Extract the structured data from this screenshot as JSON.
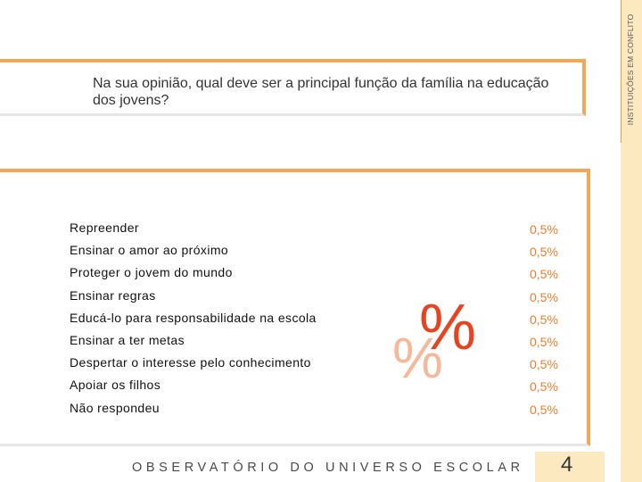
{
  "sidebar": {
    "label": "INSTITUIÇÕES EM CONFLITO"
  },
  "question": {
    "text": "Na sua opinião, qual deve ser a principal função da família na educação dos jovens?"
  },
  "answers": [
    {
      "label": "Repreender",
      "value": "0,5%"
    },
    {
      "label": "Ensinar o amor ao próximo",
      "value": "0,5%"
    },
    {
      "label": "Proteger o jovem do mundo",
      "value": "0,5%"
    },
    {
      "label": "Ensinar regras",
      "value": "0,5%"
    },
    {
      "label": "Educá-lo para responsabilidade na escola",
      "value": "0,5%"
    },
    {
      "label": "Ensinar a ter metas",
      "value": "0,5%"
    },
    {
      "label": "Despertar o interesse pelo conhecimento",
      "value": "0,5%"
    },
    {
      "label": "Apoiar os filhos",
      "value": "0,5%"
    },
    {
      "label": "Não respondeu",
      "value": "0,5%"
    }
  ],
  "graphic": {
    "big_symbol": "%",
    "small_symbol": "%"
  },
  "footer": {
    "text": "OBSERVATÓRIO DO UNIVERSO ESCOLAR",
    "page_number": "4"
  },
  "colors": {
    "accent": "#f2a65a",
    "value_text": "#f47b2a",
    "panel": "#fce9bf"
  }
}
